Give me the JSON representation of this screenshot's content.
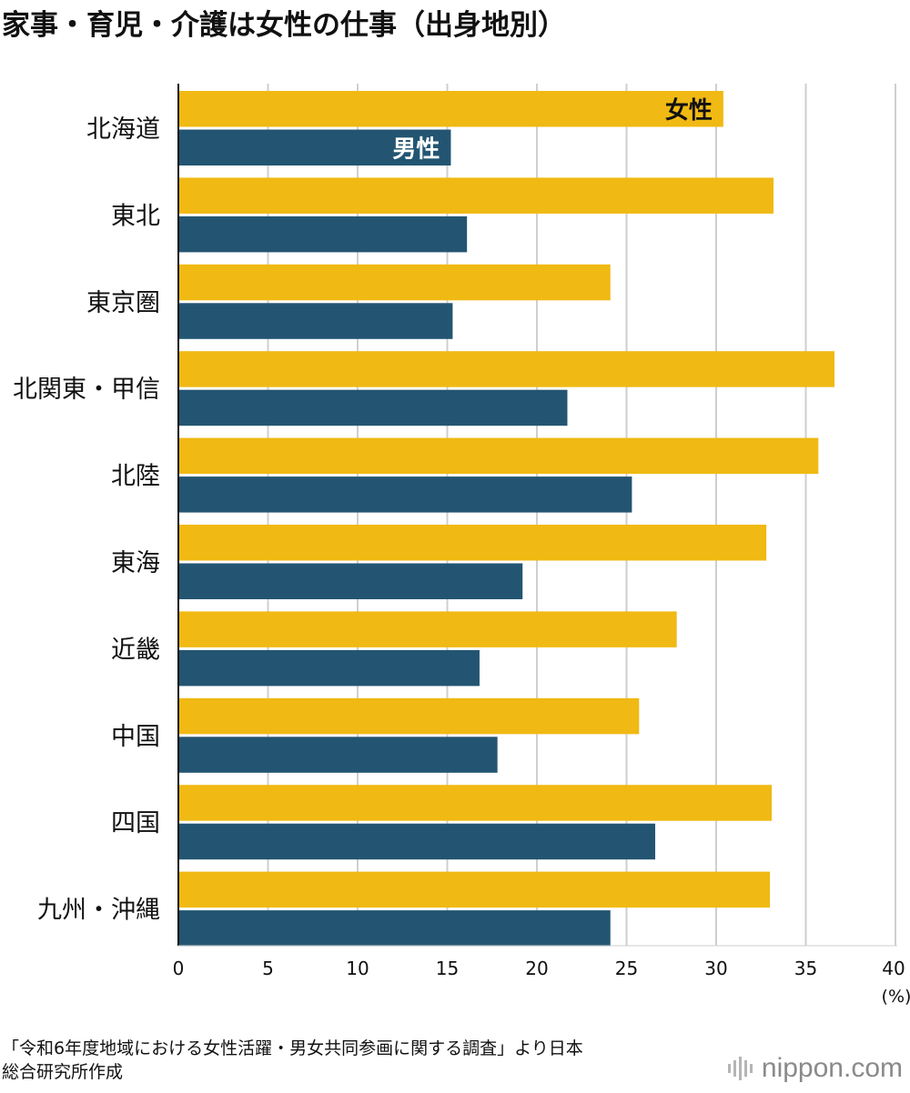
{
  "chart_data": {
    "type": "bar",
    "orientation": "horizontal",
    "title": "家事・育児・介護は女性の仕事（出身地別）",
    "categories": [
      "北海道",
      "東北",
      "東京圏",
      "北関東・甲信",
      "北陸",
      "東海",
      "近畿",
      "中国",
      "四国",
      "九州・沖縄"
    ],
    "series": [
      {
        "name": "女性",
        "color": "#f0b913",
        "values": [
          30.4,
          33.2,
          24.1,
          36.6,
          35.7,
          32.8,
          27.8,
          25.7,
          33.1,
          33.0
        ]
      },
      {
        "name": "男性",
        "color": "#235572",
        "values": [
          15.2,
          16.1,
          15.3,
          21.7,
          25.3,
          19.2,
          16.8,
          17.8,
          26.6,
          24.1
        ]
      }
    ],
    "xlim": [
      0,
      40
    ],
    "xticks": [
      "0",
      "5",
      "10",
      "15",
      "20",
      "25",
      "30",
      "35",
      "40"
    ],
    "unit_label": "(%)",
    "grid": true,
    "series_labels_inline_on_first_category": true
  },
  "source": {
    "line1": "「令和6年度地域における女性活躍・男女共同参画に関する調査」より日本",
    "line2": "総合研究所作成"
  },
  "brand": {
    "name": "nippon.com"
  }
}
